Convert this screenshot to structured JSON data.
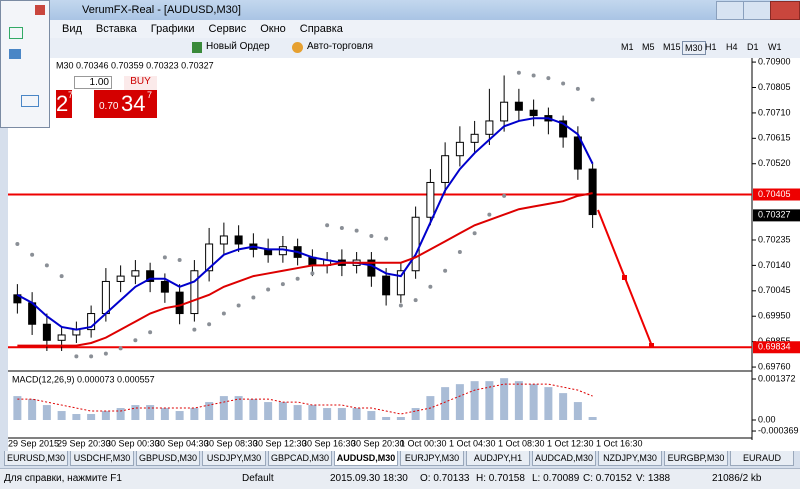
{
  "window": {
    "title": "VerumFX-Real - [AUDUSD,M30]"
  },
  "menu": [
    "Вид",
    "Вставка",
    "Графики",
    "Сервис",
    "Окно",
    "Справка"
  ],
  "toolbar": {
    "new_order": "Новый Ордер",
    "autotrade": "Авто-торговля",
    "timeframes": [
      "M1",
      "M5",
      "M15",
      "M30",
      "H1",
      "H4",
      "D1",
      "W1"
    ]
  },
  "trade_panel": {
    "lot": "1.00",
    "buy": "BUY",
    "sell_big": "2",
    "sell_sup": "7",
    "buy_small": "0.70",
    "buy_big": "34",
    "buy_sup": "7"
  },
  "chart_data": {
    "type": "candlestick",
    "title": "M30  0.70346 0.70359 0.70323 0.70327",
    "open": [
      0.7003,
      0.7,
      0.6992,
      0.6986,
      0.6988,
      0.699,
      0.6996,
      0.7008,
      0.701,
      0.7012,
      0.7008,
      0.7004,
      0.6996,
      0.7012,
      0.7022,
      0.7025,
      0.7022,
      0.702,
      0.7018,
      0.7021,
      0.7017,
      0.7014,
      0.7016,
      0.7014,
      0.7016,
      0.701,
      0.7003,
      0.7012,
      0.7032,
      0.7045,
      0.7055,
      0.706,
      0.7063,
      0.7068,
      0.7075,
      0.7072,
      0.707,
      0.7068,
      0.7062,
      0.705
    ],
    "high": [
      0.7007,
      0.7004,
      0.6996,
      0.6991,
      0.6993,
      0.6999,
      0.7013,
      0.7014,
      0.7016,
      0.7015,
      0.7011,
      0.7007,
      0.7016,
      0.7028,
      0.703,
      0.7029,
      0.7026,
      0.7024,
      0.7025,
      0.7024,
      0.702,
      0.7019,
      0.702,
      0.7019,
      0.7019,
      0.7013,
      0.7015,
      0.7036,
      0.705,
      0.706,
      0.7066,
      0.7068,
      0.708,
      0.7085,
      0.708,
      0.7076,
      0.7073,
      0.707,
      0.7066,
      0.7052
    ],
    "low": [
      0.6996,
      0.6988,
      0.6982,
      0.6982,
      0.6985,
      0.6987,
      0.6993,
      0.7004,
      0.7007,
      0.7004,
      0.7,
      0.6992,
      0.6993,
      0.7008,
      0.7018,
      0.7019,
      0.7017,
      0.7015,
      0.7015,
      0.7014,
      0.701,
      0.7011,
      0.701,
      0.7011,
      0.7006,
      0.6999,
      0.7,
      0.7009,
      0.7029,
      0.7041,
      0.7051,
      0.7056,
      0.7059,
      0.7064,
      0.7068,
      0.7066,
      0.7063,
      0.7058,
      0.7046,
      0.7028
    ],
    "close": [
      0.7,
      0.6992,
      0.6986,
      0.6988,
      0.699,
      0.6996,
      0.7008,
      0.701,
      0.7012,
      0.7008,
      0.7004,
      0.6996,
      0.7012,
      0.7022,
      0.7025,
      0.7022,
      0.702,
      0.7018,
      0.7021,
      0.7017,
      0.7014,
      0.7016,
      0.7014,
      0.7016,
      0.701,
      0.7003,
      0.7012,
      0.7032,
      0.7045,
      0.7055,
      0.706,
      0.7063,
      0.7068,
      0.7075,
      0.7072,
      0.707,
      0.7068,
      0.7062,
      0.705,
      0.7033
    ],
    "series": [
      {
        "color": "#0000cc",
        "values": [
          0.7003,
          0.7,
          0.6995,
          0.6991,
          0.699,
          0.6991,
          0.6996,
          0.7001,
          0.7006,
          0.7009,
          0.7009,
          0.7006,
          0.7008,
          0.7013,
          0.7018,
          0.702,
          0.7021,
          0.702,
          0.702,
          0.7019,
          0.7017,
          0.7016,
          0.7015,
          0.7015,
          0.7014,
          0.7011,
          0.701,
          0.7018,
          0.703,
          0.7042,
          0.705,
          0.7056,
          0.7061,
          0.7066,
          0.7068,
          0.7069,
          0.7069,
          0.7067,
          0.7063,
          0.7052
        ]
      },
      {
        "color": "#dd0000",
        "values": [
          0.6984,
          0.6984,
          0.6984,
          0.6984,
          0.6984,
          0.6985,
          0.6987,
          0.699,
          0.6993,
          0.6996,
          0.6998,
          0.6999,
          0.7001,
          0.7003,
          0.7006,
          0.7008,
          0.701,
          0.7011,
          0.7012,
          0.7013,
          0.7014,
          0.7014,
          0.7015,
          0.7015,
          0.7015,
          0.7015,
          0.7015,
          0.7017,
          0.702,
          0.7023,
          0.7026,
          0.7029,
          0.7031,
          0.7033,
          0.7035,
          0.7036,
          0.7037,
          0.7038,
          0.704,
          0.7041
        ]
      }
    ],
    "sar": {
      "color": "#8a8f96",
      "values": [
        0.7022,
        0.7018,
        0.7014,
        0.701,
        0.698,
        0.698,
        0.6981,
        0.6983,
        0.6986,
        0.6989,
        0.7017,
        0.7016,
        0.699,
        0.6992,
        0.6996,
        0.6999,
        0.7002,
        0.7005,
        0.7007,
        0.7009,
        0.7011,
        0.7029,
        0.7028,
        0.7027,
        0.7025,
        0.7024,
        0.6999,
        0.7001,
        0.7006,
        0.7012,
        0.7019,
        0.7026,
        0.7033,
        0.704,
        0.7086,
        0.7085,
        0.7084,
        0.7082,
        0.708,
        0.7076
      ]
    },
    "ylim": [
      0.69749,
      0.70919
    ],
    "yticks": [
      {
        "value": 0.709,
        "label": "0.70900"
      },
      0.70805,
      {
        "value": 0.7071,
        "label": "0.70710"
      },
      0.70615,
      {
        "value": 0.7052,
        "label": "0.70520"
      },
      0.70235,
      {
        "value": 0.7014,
        "label": "0.70140"
      },
      0.70045,
      {
        "value": 0.6995,
        "label": "0.69950"
      },
      0.69855,
      {
        "value": 0.6976,
        "label": "0.69760"
      }
    ],
    "levels": [
      0.70405,
      0.69834
    ],
    "current_price": 0.70327,
    "time_labels": [
      "29 Sep 2015",
      "29 Sep 20:30",
      "30 Sep 00:30",
      "30 Sep 04:30",
      "30 Sep 08:30",
      "30 Sep 12:30",
      "30 Sep 16:30",
      "30 Sep 20:30",
      "1 Oct 00:30",
      "1 Oct 04:30",
      "1 Oct 08:30",
      "1 Oct 12:30",
      "1 Oct 16:30"
    ],
    "macd": {
      "title": "MACD(12,26,9) 0.000073 0.000557",
      "color": "#a9bcd6",
      "signal_color": "#dd0000",
      "values": [
        0.0008,
        0.0007,
        0.0005,
        0.0003,
        0.0002,
        0.0002,
        0.0003,
        0.0004,
        0.0005,
        0.0005,
        0.0004,
        0.0003,
        0.0004,
        0.0006,
        0.0008,
        0.0008,
        0.0007,
        0.0006,
        0.0006,
        0.0005,
        0.0005,
        0.0004,
        0.0004,
        0.0004,
        0.0003,
        0.0001,
        0.0001,
        0.0004,
        0.0008,
        0.0011,
        0.0012,
        0.0013,
        0.0013,
        0.0014,
        0.0013,
        0.0012,
        0.0011,
        0.0009,
        0.0006,
        0.0001
      ],
      "signal": [
        0.0007,
        0.0007,
        0.0006,
        0.0005,
        0.0004,
        0.0003,
        0.0003,
        0.0003,
        0.0004,
        0.0004,
        0.0004,
        0.0004,
        0.0004,
        0.0005,
        0.0006,
        0.0007,
        0.0007,
        0.0007,
        0.0006,
        0.0006,
        0.0005,
        0.0005,
        0.0005,
        0.0004,
        0.0004,
        0.0003,
        0.0002,
        0.0003,
        0.0004,
        0.0006,
        0.0008,
        0.001,
        0.0011,
        0.0012,
        0.0012,
        0.0012,
        0.0012,
        0.0011,
        0.001,
        0.0008
      ],
      "ylim": [
        -0.000569,
        0.001573
      ],
      "yticks": [
        0.001372,
        {
          "value": 0,
          "label": "0.00"
        },
        -0.000369
      ]
    }
  },
  "tabs": [
    "EURUSD,M30",
    "USDCHF,M30",
    "GBPUSD,M30",
    "USDJPY,M30",
    "GBPCAD,M30",
    "AUDUSD,M30",
    "EURJPY,M30",
    "AUDJPY,H1",
    "AUDCAD,M30",
    "NZDJPY,M30",
    "EURGBP,M30",
    "EURAUD"
  ],
  "active_tab": "AUDUSD,M30",
  "status": [
    "Для справки, нажмите F1",
    "Default",
    "2015.09.30 18:30",
    "O: 0.70133",
    "H: 0.70158",
    "L: 0.70089",
    "C: 0.70152",
    "V: 1388",
    "21086/2 kb"
  ]
}
